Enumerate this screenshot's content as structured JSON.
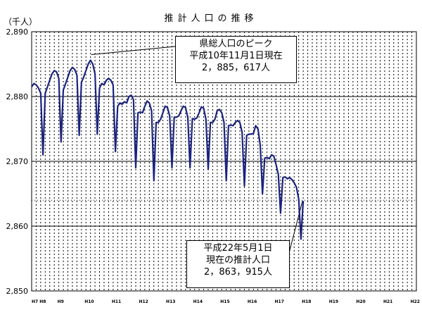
{
  "chart_data": {
    "type": "line",
    "title": "推計人口の推移",
    "unit_label": "（千人）",
    "yticks": [
      "2,850",
      "2,860",
      "2,870",
      "2,880",
      "2,890"
    ],
    "ylim": [
      2850,
      2890
    ],
    "xlim": [
      0,
      170
    ],
    "xticks": [
      {
        "label": "H7 H8",
        "x": 0
      },
      {
        "label": "H9",
        "x": 12
      },
      {
        "label": "H10",
        "x": 24
      },
      {
        "label": "H11",
        "x": 36
      },
      {
        "label": "H12",
        "x": 48
      },
      {
        "label": "H13",
        "x": 60
      },
      {
        "label": "H14",
        "x": 72
      },
      {
        "label": "H15",
        "x": 84
      },
      {
        "label": "H16",
        "x": 96
      },
      {
        "label": "H17",
        "x": 108
      },
      {
        "label": "H18",
        "x": 120
      },
      {
        "label": "H19",
        "x": 132
      },
      {
        "label": "H20",
        "x": 144
      },
      {
        "label": "H21",
        "x": 156
      },
      {
        "label": "H22",
        "x": 168
      }
    ],
    "grid": {
      "horizontal": true,
      "vertical_dashed": true
    },
    "series": [
      {
        "color": "#1a237e",
        "points": [
          [
            0,
            2881.5
          ],
          [
            1,
            2882.0
          ],
          [
            2,
            2881.8
          ],
          [
            3,
            2881.3
          ],
          [
            4,
            2880.5
          ],
          [
            5,
            2871.0
          ],
          [
            6,
            2880.5
          ],
          [
            7,
            2881.5
          ],
          [
            8,
            2882.5
          ],
          [
            9,
            2883.5
          ],
          [
            10,
            2884.0
          ],
          [
            11,
            2883.8
          ],
          [
            12,
            2882.8
          ],
          [
            13,
            2873.0
          ],
          [
            14,
            2881.0
          ],
          [
            15,
            2882.0
          ],
          [
            16,
            2883.0
          ],
          [
            17,
            2884.0
          ],
          [
            18,
            2884.5
          ],
          [
            19,
            2884.2
          ],
          [
            20,
            2883.3
          ],
          [
            21,
            2874.0
          ],
          [
            22,
            2882.2
          ],
          [
            23,
            2883.0
          ],
          [
            24,
            2884.0
          ],
          [
            25,
            2885.0
          ],
          [
            26,
            2885.6
          ],
          [
            27,
            2885.0
          ],
          [
            28,
            2883.5
          ],
          [
            29,
            2874.2
          ],
          [
            30,
            2881.3
          ],
          [
            31,
            2882.0
          ],
          [
            32,
            2881.8
          ],
          [
            33,
            2882.5
          ],
          [
            34,
            2882.8
          ],
          [
            35,
            2882.5
          ],
          [
            36,
            2881.8
          ],
          [
            37,
            2871.5
          ],
          [
            38,
            2878.5
          ],
          [
            39,
            2879.0
          ],
          [
            40,
            2878.8
          ],
          [
            41,
            2879.2
          ],
          [
            42,
            2879.0
          ],
          [
            43,
            2880.0
          ],
          [
            44,
            2880.2
          ],
          [
            45,
            2879.5
          ],
          [
            46,
            2869.0
          ],
          [
            47,
            2877.5
          ],
          [
            48,
            2877.6
          ],
          [
            49,
            2877.5
          ],
          [
            50,
            2878.5
          ],
          [
            51,
            2879.3
          ],
          [
            52,
            2879.0
          ],
          [
            53,
            2877.8
          ],
          [
            54,
            2867.0
          ],
          [
            55,
            2876.0
          ],
          [
            56,
            2876.0
          ],
          [
            57,
            2876.5
          ],
          [
            58,
            2877.5
          ],
          [
            59,
            2878.5
          ],
          [
            60,
            2878.3
          ],
          [
            61,
            2877.0
          ],
          [
            62,
            2869.0
          ],
          [
            63,
            2876.8
          ],
          [
            64,
            2876.8
          ],
          [
            65,
            2877.0
          ],
          [
            66,
            2877.8
          ],
          [
            67,
            2878.5
          ],
          [
            68,
            2878.3
          ],
          [
            69,
            2876.8
          ],
          [
            70,
            2869.0
          ],
          [
            71,
            2876.6
          ],
          [
            72,
            2876.5
          ],
          [
            73,
            2876.7
          ],
          [
            74,
            2877.5
          ],
          [
            75,
            2878.4
          ],
          [
            76,
            2878.2
          ],
          [
            77,
            2876.5
          ],
          [
            78,
            2868.8
          ],
          [
            79,
            2876.0
          ],
          [
            80,
            2876.0
          ],
          [
            81,
            2876.5
          ],
          [
            82,
            2877.8
          ],
          [
            83,
            2878.0
          ],
          [
            84,
            2877.5
          ],
          [
            85,
            2876.0
          ],
          [
            86,
            2867.0
          ],
          [
            87,
            2875.5
          ],
          [
            88,
            2875.6
          ],
          [
            89,
            2875.5
          ],
          [
            90,
            2876.0
          ],
          [
            91,
            2876.3
          ],
          [
            92,
            2876.0
          ],
          [
            93,
            2874.5
          ],
          [
            94,
            2866.2
          ],
          [
            95,
            2874.0
          ],
          [
            96,
            2874.2
          ],
          [
            97,
            2874.2
          ],
          [
            98,
            2874.3
          ],
          [
            99,
            2875.5
          ],
          [
            100,
            2875.0
          ],
          [
            101,
            2872.5
          ],
          [
            102,
            2865.0
          ],
          [
            103,
            2870.5
          ],
          [
            104,
            2870.6
          ],
          [
            105,
            2870.4
          ],
          [
            106,
            2871.0
          ],
          [
            107,
            2870.8
          ],
          [
            108,
            2869.5
          ],
          [
            109,
            2868.0
          ],
          [
            110,
            2862.0
          ],
          [
            111,
            2867.5
          ],
          [
            112,
            2867.6
          ],
          [
            113,
            2867.3
          ],
          [
            114,
            2867.5
          ],
          [
            115,
            2867.2
          ],
          [
            116,
            2866.7
          ],
          [
            117,
            2866.0
          ],
          [
            118,
            2864.2
          ],
          [
            119,
            2858.0
          ],
          [
            120,
            2863.9
          ]
        ]
      }
    ],
    "annotations": [
      {
        "lines": [
          "県総人口のピーク",
          "平成10年11月1日現在",
          "2，885，617人"
        ],
        "target": [
          26,
          2885.6
        ]
      },
      {
        "lines": [
          "平成22年5月1日",
          "現在の推計人口",
          "2，863，915人"
        ],
        "target": [
          120,
          2863.9
        ]
      }
    ]
  }
}
